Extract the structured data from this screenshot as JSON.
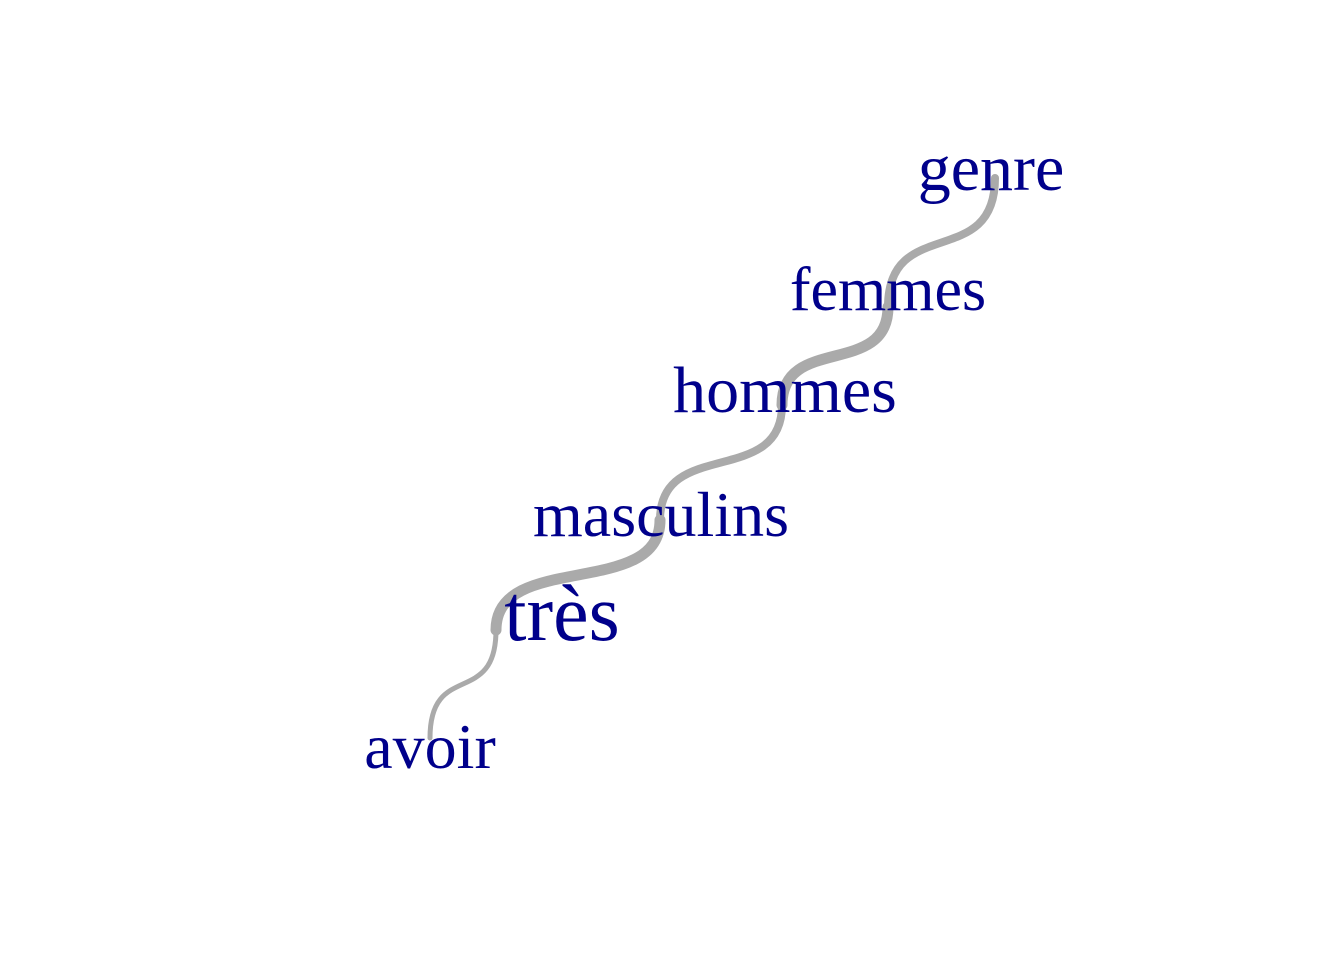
{
  "graph": {
    "type": "word-chain",
    "colors": {
      "word": "#00008b",
      "edge": "#aaaaaa",
      "background": "#ffffff"
    },
    "nodes": [
      {
        "id": "avoir",
        "label": "avoir"
      },
      {
        "id": "tres",
        "label": "très"
      },
      {
        "id": "masculins",
        "label": "masculins"
      },
      {
        "id": "hommes",
        "label": "hommes"
      },
      {
        "id": "femmes",
        "label": "femmes"
      },
      {
        "id": "genre",
        "label": "genre"
      }
    ],
    "edges": [
      {
        "from": "avoir",
        "to": "tres",
        "weight": 1
      },
      {
        "from": "tres",
        "to": "masculins",
        "weight": 3
      },
      {
        "from": "masculins",
        "to": "hommes",
        "weight": 2
      },
      {
        "from": "hommes",
        "to": "femmes",
        "weight": 3
      },
      {
        "from": "femmes",
        "to": "genre",
        "weight": 2
      }
    ]
  }
}
